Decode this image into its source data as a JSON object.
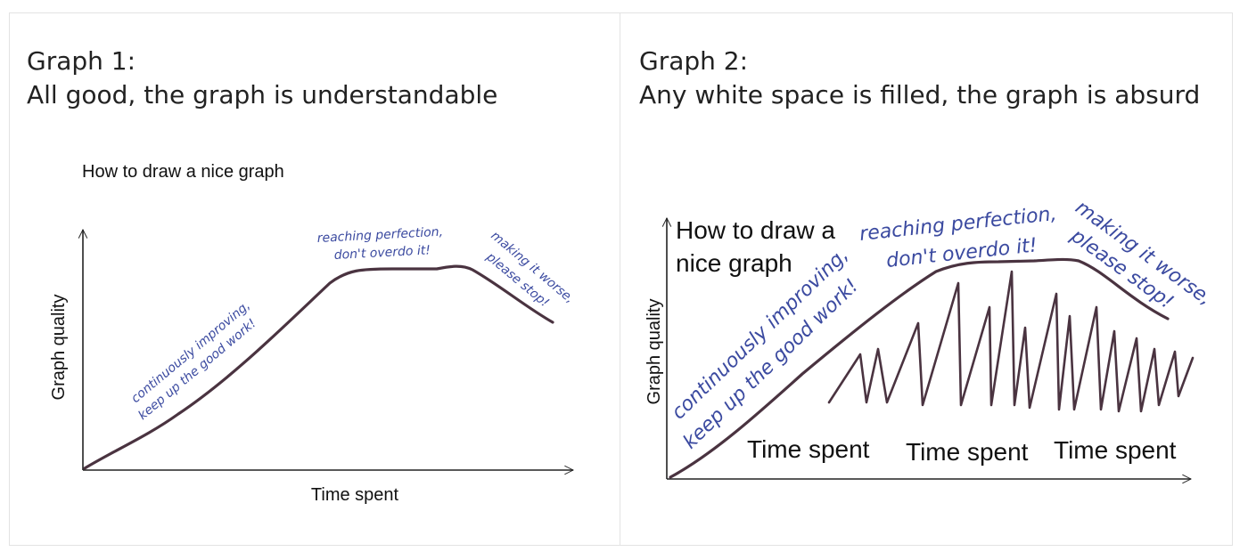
{
  "panels": [
    {
      "heading": "Graph 1:",
      "subheading": "All good, the graph is understandable",
      "diagram": {
        "title": "How to draw a nice graph",
        "y_axis_label": "Graph quality",
        "x_axis_label": "Time spent",
        "annotations": {
          "rising_line1": "continuously improving,",
          "rising_line2": "keep up the good work!",
          "plateau_line1": "reaching perfection,",
          "plateau_line2": "don't overdo it!",
          "decline_line1": "making it worse,",
          "decline_line2": "please stop!"
        }
      }
    },
    {
      "heading": "Graph 2:",
      "subheading": "Any white space is filled, the graph is absurd",
      "diagram": {
        "title_line1": "How to draw a",
        "title_line2": "nice graph",
        "y_axis_label": "Graph quality",
        "x_axis_labels": [
          "Time spent",
          "Time spent",
          "Time spent"
        ],
        "annotations": {
          "rising_line1": "continuously improving,",
          "rising_line2": "keep up the good work!",
          "plateau_line1": "reaching perfection,",
          "plateau_line2": "don't overdo it!",
          "decline_line1": "making it worse,",
          "decline_line2": "please stop!"
        }
      }
    }
  ],
  "colors": {
    "curve": "#4a3340",
    "axis": "#222222",
    "handwriting": "#3b4aa0",
    "border": "#e3e3e3"
  }
}
